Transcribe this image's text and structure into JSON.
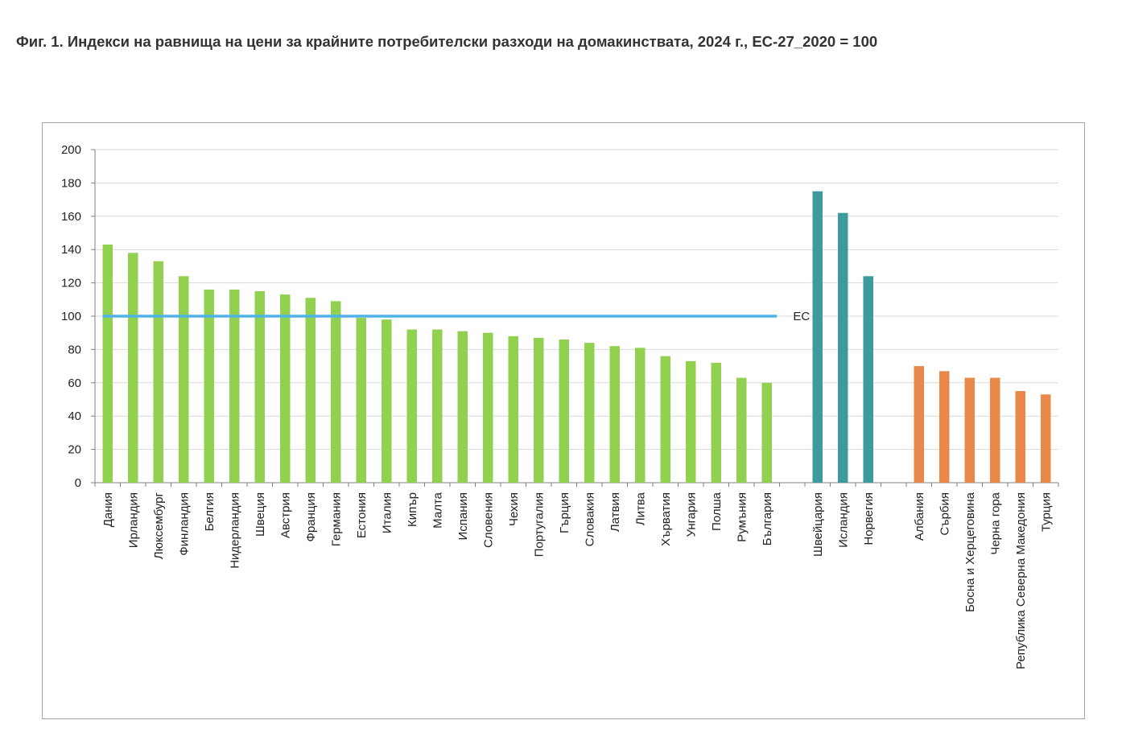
{
  "title": "Фиг. 1. Индекси на равнища на цени за крайните потребителски разходи на домакинствата, 2024 г., ЕС-27_2020 = 100",
  "chart_data": {
    "type": "bar",
    "ylim": [
      0,
      200
    ],
    "yticks": [
      0,
      20,
      40,
      60,
      80,
      100,
      120,
      140,
      160,
      180,
      200
    ],
    "grid": true,
    "legend": "none",
    "reference_line": {
      "value": 100,
      "label": "ЕС",
      "color": "#4fb3e8"
    },
    "groups": [
      {
        "color": "#92d050",
        "categories": [
          "Дания",
          "Ирландия",
          "Люксембург",
          "Финландия",
          "Белгия",
          "Нидерландия",
          "Швеция",
          "Австрия",
          "Франция",
          "Германия",
          "Естония",
          "Италия",
          "Кипър",
          "Малта",
          "Испания",
          "Словения",
          "Чехия",
          "Португалия",
          "Гърция",
          "Словакия",
          "Латвия",
          "Литва",
          "Хърватия",
          "Унгария",
          "Полша",
          "Румъния",
          "България"
        ],
        "values": [
          143,
          138,
          133,
          124,
          116,
          116,
          115,
          113,
          111,
          109,
          99,
          98,
          92,
          92,
          91,
          90,
          88,
          87,
          86,
          84,
          82,
          81,
          76,
          73,
          72,
          63,
          60
        ]
      },
      {
        "color": "#3d9b9e",
        "categories": [
          "Швейцария",
          "Исландия",
          "Норвегия"
        ],
        "values": [
          175,
          162,
          124
        ]
      },
      {
        "color": "#e8884a",
        "categories": [
          "Албания",
          "Сърбия",
          "Босна и Херцеговина",
          "Черна гора",
          "Република Северна Македония",
          "Турция"
        ],
        "values": [
          70,
          67,
          63,
          63,
          55,
          53
        ]
      }
    ]
  }
}
